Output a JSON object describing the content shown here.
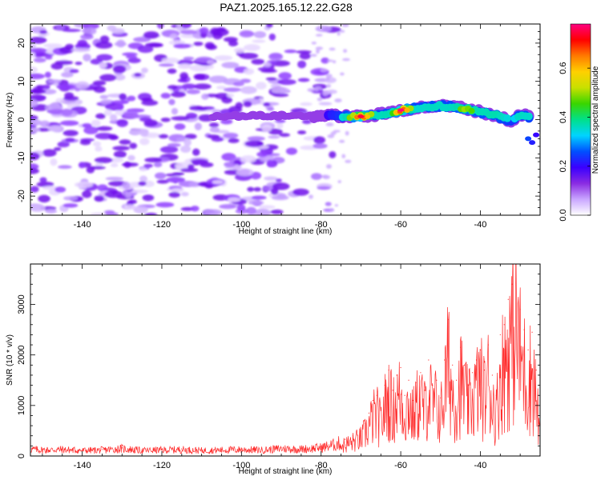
{
  "title": "PAZ1.2025.165.12.22.G28",
  "chart_data": [
    {
      "type": "heatmap",
      "xlabel": "Height of straight line (km)",
      "ylabel": "Frequency (Hz)",
      "colorbar_label": "Normalized spectral amplitude",
      "xlim": [
        -153,
        -25
      ],
      "ylim": [
        -25,
        25
      ],
      "xticks": [
        -140,
        -120,
        -100,
        -80,
        -60,
        -40
      ],
      "yticks": [
        -20,
        -10,
        0,
        10,
        20
      ],
      "colorbar_ticks": [
        0.0,
        0.2,
        0.4,
        0.6
      ],
      "colorbar_tick_labels": [
        "0.0",
        "0.2",
        "0.4",
        "0.6"
      ],
      "colorbar_range": [
        0,
        0.78
      ],
      "colormap": [
        "#ffffff",
        "#c9a6ff",
        "#8a2be2",
        "#3a00ff",
        "#0050ff",
        "#00d4ff",
        "#00e08a",
        "#39d600",
        "#c8e000",
        "#ffd000",
        "#ff7a00",
        "#ff0000",
        "#ff0080"
      ],
      "noise_region_x": [
        -153,
        -83
      ],
      "noise_freq_spread": [
        -25,
        25
      ],
      "signal_ridge": [
        {
          "x": -107,
          "f": 1.0,
          "amp": 0.12
        },
        {
          "x": -100,
          "f": 1.0,
          "amp": 0.14
        },
        {
          "x": -95,
          "f": 1.0,
          "amp": 0.13
        },
        {
          "x": -85,
          "f": 1.0,
          "amp": 0.14
        },
        {
          "x": -80,
          "f": 1.0,
          "amp": 0.16
        },
        {
          "x": -76,
          "f": 1.0,
          "amp": 0.25
        },
        {
          "x": -72,
          "f": 0.8,
          "amp": 0.55
        },
        {
          "x": -70,
          "f": 0.8,
          "amp": 0.75
        },
        {
          "x": -66,
          "f": 1.2,
          "amp": 0.4
        },
        {
          "x": -62,
          "f": 2.0,
          "amp": 0.45
        },
        {
          "x": -60,
          "f": 2.5,
          "amp": 0.78
        },
        {
          "x": -56,
          "f": 3.0,
          "amp": 0.35
        },
        {
          "x": -52,
          "f": 3.5,
          "amp": 0.4
        },
        {
          "x": -48,
          "f": 3.5,
          "amp": 0.38
        },
        {
          "x": -44,
          "f": 3.0,
          "amp": 0.5
        },
        {
          "x": -40,
          "f": 2.0,
          "amp": 0.42
        },
        {
          "x": -36,
          "f": 1.0,
          "amp": 0.45
        },
        {
          "x": -32,
          "f": -0.5,
          "amp": 0.3
        },
        {
          "x": -30,
          "f": 1.5,
          "amp": 0.4
        },
        {
          "x": -27,
          "f": 0.5,
          "amp": 0.35
        }
      ]
    },
    {
      "type": "line",
      "xlabel": "Height of straight line (km)",
      "ylabel": "SNR (10 * v/v)",
      "xlim": [
        -153,
        -25
      ],
      "ylim": [
        0,
        3800
      ],
      "xticks": [
        -140,
        -120,
        -100,
        -80,
        -60,
        -40
      ],
      "yticks": [
        0,
        1000,
        2000,
        3000
      ],
      "line_color": "#ff2b2b",
      "series": [
        {
          "x": [
            -153,
            -150,
            -145,
            -140,
            -135,
            -130,
            -125,
            -120,
            -115,
            -110,
            -105,
            -100,
            -95,
            -90,
            -85,
            -80,
            -78,
            -76,
            -74,
            -72,
            -70,
            -69,
            -68,
            -67,
            -66,
            -65,
            -64,
            -63,
            -62,
            -61,
            -60,
            -59,
            -58,
            -57,
            -56,
            -55,
            -54,
            -53,
            -52,
            -51,
            -50,
            -49,
            -48,
            -47,
            -46,
            -45,
            -44,
            -43,
            -42,
            -41,
            -40,
            -39,
            -38,
            -37,
            -36,
            -35,
            -34,
            -33,
            -32,
            -31,
            -30,
            -29,
            -28,
            -27,
            -26,
            -25
          ],
          "y": [
            150,
            130,
            140,
            120,
            130,
            160,
            120,
            130,
            140,
            120,
            130,
            140,
            130,
            160,
            150,
            180,
            220,
            260,
            330,
            400,
            500,
            650,
            850,
            1100,
            1200,
            900,
            1400,
            1700,
            1300,
            1600,
            1750,
            1200,
            1500,
            1100,
            1450,
            1650,
            1300,
            1900,
            1400,
            1500,
            1150,
            1900,
            2700,
            1800,
            1500,
            2150,
            1800,
            1400,
            1650,
            1900,
            2100,
            1700,
            2200,
            1600,
            1200,
            2400,
            2600,
            3100,
            3400,
            3800,
            2900,
            2500,
            2100,
            2450,
            1700,
            500
          ]
        }
      ]
    }
  ]
}
